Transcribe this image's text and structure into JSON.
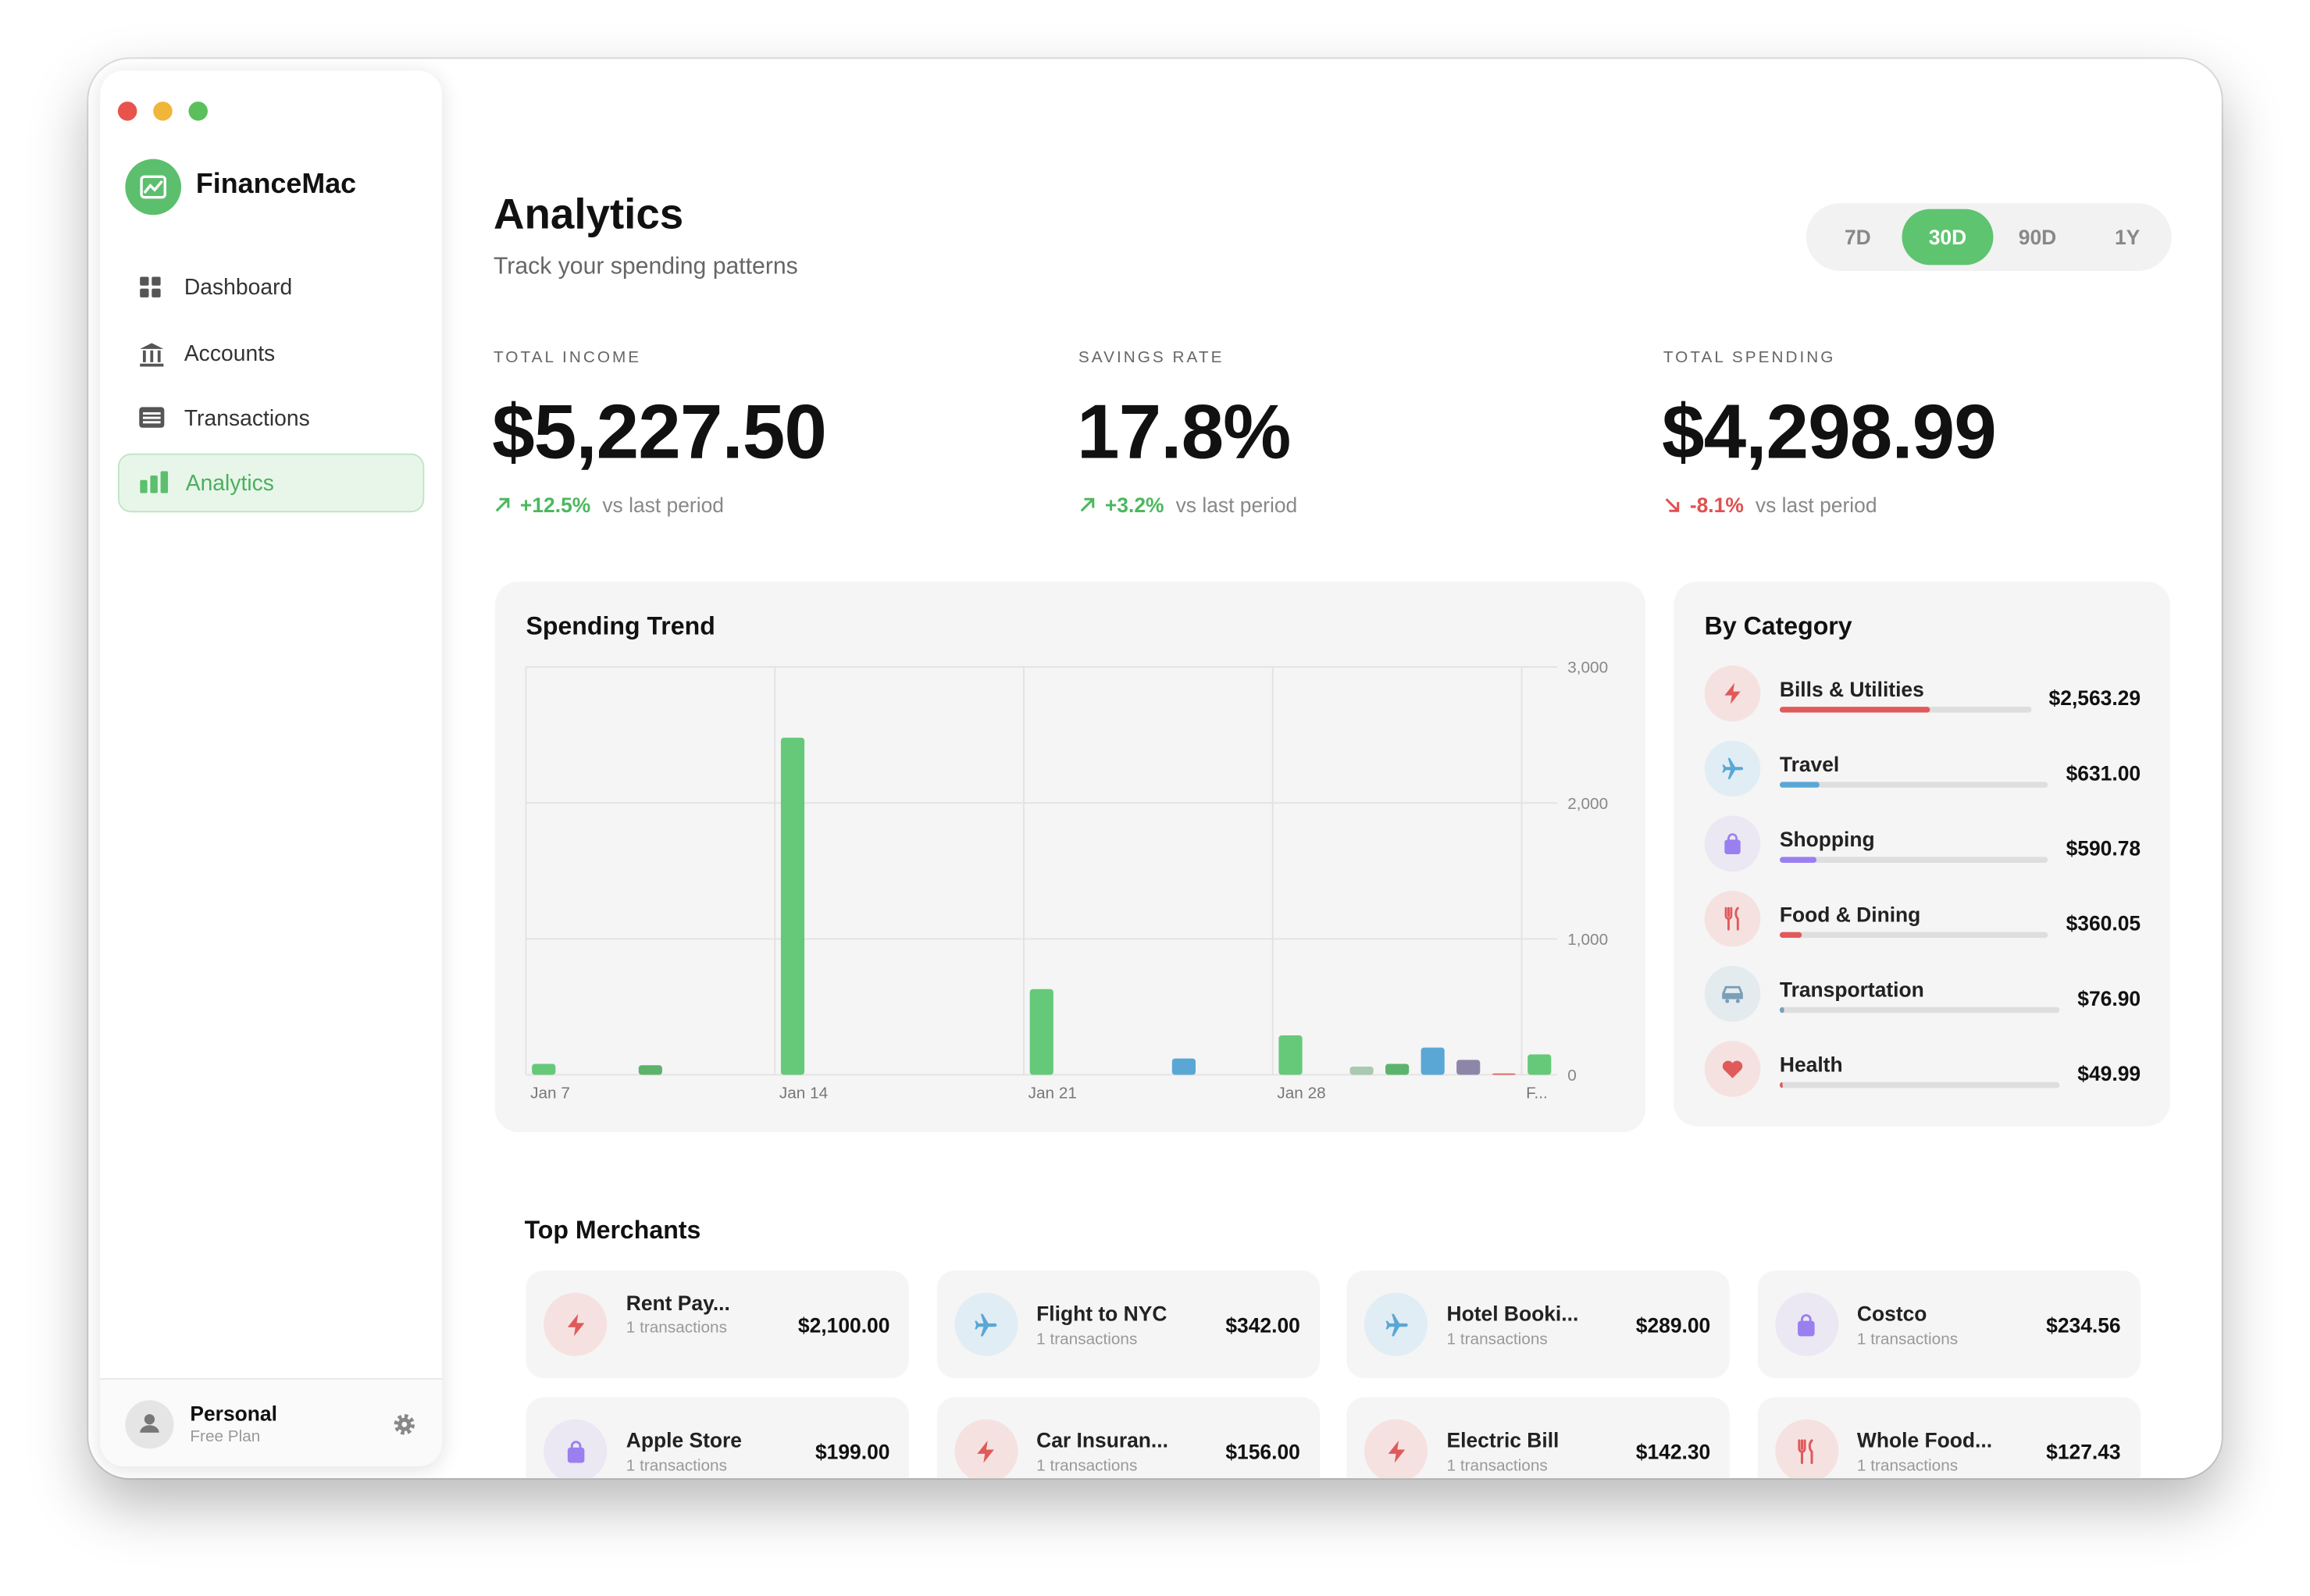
{
  "sidebar": {
    "app_name": "FinanceMac",
    "nav": [
      "Dashboard",
      "Accounts",
      "Transactions",
      "Analytics"
    ],
    "active": 3,
    "profile": {
      "name": "Personal",
      "plan": "Free Plan"
    }
  },
  "header": {
    "title": "Analytics",
    "subtitle": "Track your spending patterns",
    "periods": [
      "7D",
      "30D",
      "90D",
      "1Y"
    ],
    "active_period": 1
  },
  "stats": [
    {
      "label": "TOTAL INCOME",
      "value": 5227.5,
      "value_label": "$5,227.50",
      "change": "+12.5%",
      "direction": "up",
      "note": "vs last period"
    },
    {
      "label": "SAVINGS RATE",
      "value": 17.8,
      "value_label": "17.8%",
      "change": "+3.2%",
      "direction": "up",
      "note": "vs last period"
    },
    {
      "label": "TOTAL SPENDING",
      "value": 4298.99,
      "value_label": "$4,298.99",
      "change": "-8.1%",
      "direction": "down",
      "note": "vs last period"
    }
  ],
  "chart_data": {
    "type": "bar",
    "title": "Spending Trend",
    "categories": [
      "Jan 7",
      null,
      null,
      null,
      null,
      null,
      null,
      "Jan 14",
      null,
      null,
      null,
      null,
      null,
      null,
      "Jan 21",
      null,
      null,
      null,
      null,
      null,
      null,
      "Jan 28",
      null,
      null,
      null,
      null,
      null,
      null,
      "F..."
    ],
    "values": [
      80,
      0,
      0,
      70,
      0,
      0,
      0,
      2480,
      0,
      0,
      0,
      0,
      0,
      0,
      630,
      0,
      0,
      0,
      120,
      0,
      0,
      290,
      0,
      60,
      80,
      200,
      110,
      10,
      150
    ],
    "colors": [
      "#66c97a",
      "#66c97a",
      "#66c97a",
      "#5cb36c",
      "#66c97a",
      "#66c97a",
      "#66c97a",
      "#66c97a",
      "#66c97a",
      "#66c97a",
      "#66c97a",
      "#66c97a",
      "#66c97a",
      "#66c97a",
      "#66c97a",
      "#66c97a",
      "#66c97a",
      "#66c97a",
      "#5aa7d6",
      "#66c97a",
      "#66c97a",
      "#66c97a",
      "#66c97a",
      "#a9c9b0",
      "#5cb36c",
      "#5aa7d6",
      "#8e86a8",
      "#e06060",
      "#66c97a"
    ],
    "ylim": [
      0,
      3000
    ],
    "yticks": [
      0,
      {
        "value": 1000,
        "label": "1,000"
      },
      {
        "value": 2000,
        "label": "2,000"
      },
      {
        "value": 3000,
        "label": "3,000"
      }
    ],
    "grid": true
  },
  "by_category": {
    "title": "By Category",
    "names": [
      "Bills & Utilities",
      "Travel",
      "Shopping",
      "Food & Dining",
      "Transportation",
      "Health"
    ],
    "values": [
      2563.29,
      631.0,
      590.78,
      360.05,
      76.9,
      49.99
    ],
    "value_labels": [
      "$2,563.29",
      "$631.00",
      "$590.78",
      "$360.05",
      "$76.90",
      "$49.99"
    ],
    "colors": [
      "#e05a5a",
      "#5aa7d6",
      "#9a7ff0",
      "#e05a5a",
      "#7a9fb8",
      "#e05a5a"
    ]
  },
  "top_merchants": {
    "title": "Top Merchants",
    "items": [
      {
        "name": "Rent Pay...",
        "count": "1 transactions",
        "amount": "$2,100.00"
      },
      {
        "name": "Flight to NYC",
        "count": "1 transactions",
        "amount": "$342.00"
      },
      {
        "name": "Hotel Booki...",
        "count": "1 transactions",
        "amount": "$289.00"
      },
      {
        "name": "Costco",
        "count": "1 transactions",
        "amount": "$234.56"
      },
      {
        "name": "Apple Store",
        "count": "1 transactions",
        "amount": "$199.00"
      },
      {
        "name": "Car Insuran...",
        "count": "1 transactions",
        "amount": "$156.00"
      },
      {
        "name": "Electric Bill",
        "count": "1 transactions",
        "amount": "$142.30"
      },
      {
        "name": "Whole Food...",
        "count": "1 transactions",
        "amount": "$127.43"
      }
    ]
  }
}
